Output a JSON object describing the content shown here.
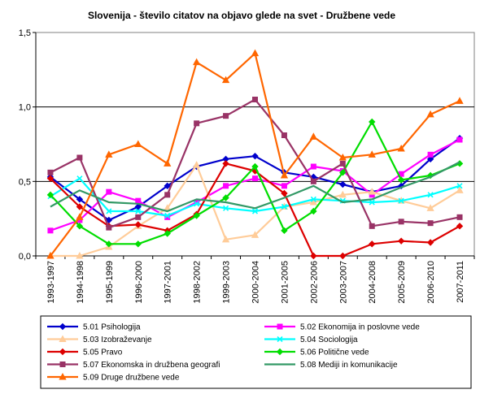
{
  "chart_data": {
    "type": "line",
    "title": "Slovenija - število citatov na objavo glede na svet - Družbene vede",
    "xlabel": "",
    "ylabel": "",
    "categories": [
      "1993-1997",
      "1994-1998",
      "1995-1999",
      "1996-2000",
      "1997-2001",
      "1998-2002",
      "1999-2003",
      "2000-2004",
      "2001-2005",
      "2002-2006",
      "2003-2007",
      "2004-2008",
      "2005-2009",
      "2006-2010",
      "2007-2011"
    ],
    "ylim": [
      0,
      1.5
    ],
    "yticks": [
      "0,0",
      "0,5",
      "1,0",
      "1,5"
    ],
    "ytick_values": [
      0,
      0.5,
      1.0,
      1.5
    ],
    "grid": "horizontal at 0,5 and 1,0",
    "legend_position": "bottom",
    "series": [
      {
        "name": "5.01 Psihologija",
        "color": "#0000CC",
        "marker": "diamond",
        "values": [
          0.53,
          0.38,
          0.24,
          0.33,
          0.47,
          0.6,
          0.65,
          0.67,
          0.56,
          0.53,
          0.48,
          0.43,
          0.47,
          0.65,
          0.79
        ]
      },
      {
        "name": "5.02 Ekonomija in poslovne vede",
        "color": "#FF00FF",
        "marker": "square",
        "values": [
          0.17,
          0.24,
          0.43,
          0.37,
          0.26,
          0.36,
          0.47,
          0.52,
          0.47,
          0.6,
          0.57,
          0.41,
          0.55,
          0.68,
          0.78
        ]
      },
      {
        "name": "5.03 Izobraževanje",
        "color": "#FFCC99",
        "marker": "triangle",
        "values": [
          0.0,
          0.0,
          0.06,
          0.2,
          0.32,
          0.61,
          0.11,
          0.14,
          0.33,
          0.36,
          0.41,
          0.43,
          0.37,
          0.32,
          0.44
        ]
      },
      {
        "name": "5.04 Sociologija",
        "color": "#00FFFF",
        "marker": "x",
        "values": [
          0.4,
          0.52,
          0.3,
          0.3,
          0.27,
          0.35,
          0.32,
          0.3,
          0.33,
          0.38,
          0.37,
          0.36,
          0.37,
          0.41,
          0.47
        ]
      },
      {
        "name": "5.05 Pravo",
        "color": "#DD0000",
        "marker": "diamond",
        "values": [
          0.52,
          0.33,
          0.2,
          0.21,
          0.17,
          0.28,
          0.62,
          0.57,
          0.42,
          0.0,
          0.0,
          0.08,
          0.1,
          0.09,
          0.2
        ]
      },
      {
        "name": "5.06 Politične vede",
        "color": "#00DD00",
        "marker": "diamond",
        "values": [
          0.41,
          0.2,
          0.08,
          0.08,
          0.15,
          0.27,
          0.39,
          0.6,
          0.17,
          0.3,
          0.56,
          0.9,
          0.51,
          0.54,
          0.62
        ]
      },
      {
        "name": "5.07 Ekonomska in družbena geografi",
        "color": "#993366",
        "marker": "square",
        "values": [
          0.56,
          0.66,
          0.19,
          0.26,
          0.41,
          0.89,
          0.94,
          1.05,
          0.81,
          0.5,
          0.62,
          0.2,
          0.23,
          0.22,
          0.26
        ]
      },
      {
        "name": "5.08 Mediji in komunikacije",
        "color": "#339966",
        "marker": "none",
        "values": [
          0.33,
          0.44,
          0.36,
          0.35,
          0.3,
          0.38,
          0.36,
          0.32,
          0.39,
          0.47,
          0.36,
          0.38,
          0.46,
          0.53,
          0.63
        ]
      },
      {
        "name": "5.09 Druge družbene vede",
        "color": "#FF6600",
        "marker": "triangle",
        "values": [
          0.0,
          0.26,
          0.68,
          0.75,
          0.62,
          1.3,
          1.18,
          1.36,
          0.54,
          0.8,
          0.66,
          0.68,
          0.72,
          0.95,
          1.04
        ]
      }
    ]
  }
}
